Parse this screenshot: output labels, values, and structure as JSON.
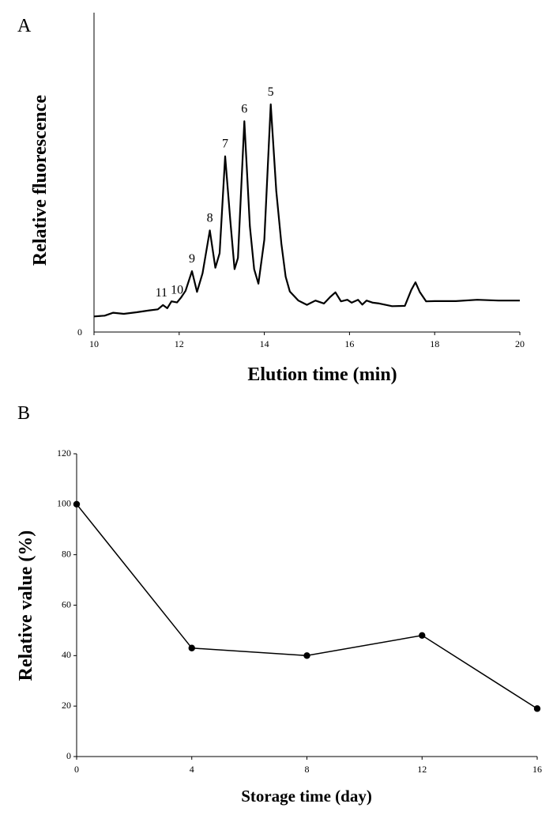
{
  "chart_data": [
    {
      "panel": "A",
      "type": "line",
      "xlabel": "Elution time (min)",
      "ylabel": "Relative fluorescence",
      "xlim": [
        10,
        20
      ],
      "xticks": [
        "10",
        "12",
        "14",
        "16",
        "18",
        "20"
      ],
      "yticks": [
        "0"
      ],
      "ylim": [
        0,
        100
      ],
      "grid": false,
      "x": [
        10.0,
        10.25,
        10.45,
        10.7,
        11.0,
        11.3,
        11.5,
        11.62,
        11.72,
        11.82,
        11.95,
        12.05,
        12.15,
        12.3,
        12.42,
        12.55,
        12.72,
        12.85,
        12.95,
        13.08,
        13.2,
        13.3,
        13.38,
        13.53,
        13.66,
        13.76,
        13.86,
        14.0,
        14.15,
        14.28,
        14.4,
        14.5,
        14.6,
        14.8,
        15.0,
        15.2,
        15.4,
        15.55,
        15.67,
        15.8,
        15.95,
        16.05,
        16.2,
        16.3,
        16.4,
        16.55,
        16.7,
        17.0,
        17.3,
        17.45,
        17.55,
        17.65,
        17.8,
        18.0,
        18.5,
        19.0,
        19.5,
        20.0
      ],
      "values": [
        0.5,
        0.8,
        1.9,
        1.5,
        2.1,
        2.8,
        3.2,
        4.8,
        3.6,
        6.2,
        5.8,
        7.8,
        10.2,
        17.6,
        9.8,
        16.8,
        33.0,
        18.9,
        24.4,
        61.0,
        36.8,
        18.4,
        22.6,
        74.2,
        34.5,
        18.4,
        12.9,
        29.5,
        80.6,
        47.9,
        27.9,
        15.5,
        9.9,
        6.5,
        4.9,
        6.5,
        5.4,
        7.9,
        9.6,
        6.2,
        6.8,
        5.7,
        6.8,
        5.0,
        6.5,
        5.7,
        5.4,
        4.4,
        4.5,
        10.5,
        13.4,
        9.8,
        6.2,
        6.3,
        6.3,
        6.8,
        6.5,
        6.5
      ],
      "annotations": [
        {
          "text": "5",
          "x": 14.15,
          "y": 80.6
        },
        {
          "text": "6",
          "x": 13.53,
          "y": 74.2
        },
        {
          "text": "7",
          "x": 13.08,
          "y": 61.0
        },
        {
          "text": "8",
          "x": 12.72,
          "y": 33.0
        },
        {
          "text": "9",
          "x": 12.3,
          "y": 17.6
        },
        {
          "text": "10",
          "x": 11.95,
          "y": 5.8
        },
        {
          "text": "11",
          "x": 11.62,
          "y": 4.8
        }
      ]
    },
    {
      "panel": "B",
      "type": "line",
      "xlabel": "Storage time (day)",
      "ylabel": "Relative value (%)",
      "x": [
        0,
        4,
        8,
        12,
        16
      ],
      "values": [
        100,
        43,
        40,
        48,
        19
      ],
      "xlim": [
        0,
        16
      ],
      "ylim": [
        0,
        120
      ],
      "xticks": [
        "0",
        "4",
        "8",
        "12",
        "16"
      ],
      "yticks": [
        "0",
        "20",
        "40",
        "60",
        "80",
        "100",
        "120"
      ],
      "markers": "filled-circle",
      "grid": false
    }
  ]
}
